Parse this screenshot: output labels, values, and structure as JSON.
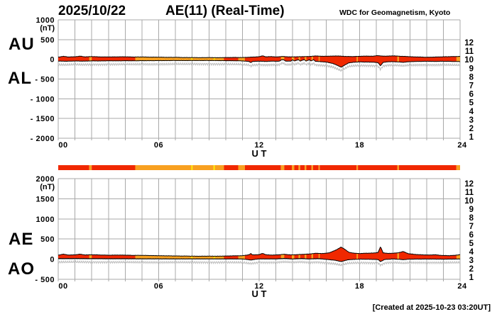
{
  "header": {
    "date": "2025/10/22",
    "title": "AE(11) (Real-Time)",
    "source": "WDC for Geomagnetism, Kyoto"
  },
  "footer": {
    "created": "[Created at 2025-10-23 03:20UT]"
  },
  "colors": {
    "red": "#f02800",
    "orange": "#f8a020",
    "yellow": "#fff400",
    "grid": "#a8a8a8",
    "outline": "#000000",
    "fuzz": "#bdbdbd"
  },
  "station_scale": {
    "numbers": [
      "12",
      "11",
      "10",
      "9",
      "8",
      "7",
      "6",
      "5",
      "4",
      "3",
      "2",
      "1"
    ],
    "colors": [
      "#e8187c",
      "#fa2d10",
      "#ff9000",
      "#f0f000",
      "#86e414",
      "#00d8c8",
      "#1e82f5",
      "#5432cc",
      "#f014f0",
      "#000000",
      "#969696",
      "#c8c8c8"
    ]
  },
  "chart_data": [
    {
      "type": "area",
      "title": "AU and AL auroral electrojet indices, 2025/10/22",
      "xlabel": "U T",
      "ylabel": "(nT)",
      "xlim": [
        0,
        24
      ],
      "ylim": [
        -2000,
        1000
      ],
      "xticks": [
        "00",
        "06",
        "12",
        "18",
        "24"
      ],
      "xtick_hours": [
        0,
        6,
        12,
        18,
        24
      ],
      "yticks": [
        1000,
        500,
        0,
        -500,
        -1000,
        -1500,
        -2000
      ],
      "grid": "1-hour vertical, 500 nT horizontal",
      "legend_position": "right station-count scale 12..1",
      "series": [
        {
          "name": "AU",
          "x": [
            0,
            0.3,
            0.6,
            1,
            1.3,
            1.6,
            2,
            2.5,
            3,
            3.5,
            4,
            4.5,
            5,
            5.5,
            6,
            6.5,
            7,
            7.5,
            8,
            8.5,
            9,
            9.5,
            10,
            10.5,
            11,
            11.5,
            12,
            12.2,
            12.4,
            12.7,
            13,
            13.4,
            13.8,
            14.2,
            14.6,
            15,
            15.4,
            15.8,
            16.2,
            16.6,
            16.9,
            17.2,
            17.6,
            18,
            18.4,
            18.8,
            19.05,
            19.3,
            19.6,
            20,
            20.4,
            20.8,
            21.2,
            21.6,
            22,
            22.4,
            22.8,
            23.2,
            23.6,
            24
          ],
          "values": [
            55,
            75,
            60,
            65,
            80,
            62,
            70,
            62,
            60,
            62,
            65,
            58,
            60,
            55,
            55,
            50,
            50,
            46,
            45,
            42,
            45,
            41,
            45,
            48,
            46,
            55,
            65,
            90,
            62,
            70,
            60,
            72,
            62,
            64,
            68,
            72,
            85,
            76,
            80,
            85,
            80,
            73,
            70,
            76,
            82,
            78,
            95,
            83,
            80,
            88,
            78,
            72,
            62,
            58,
            52,
            56,
            62,
            66,
            70,
            74
          ]
        },
        {
          "name": "AL",
          "x": [
            0,
            0.5,
            1,
            1.5,
            2,
            2.5,
            3,
            3.5,
            4,
            4.5,
            5,
            5.5,
            6,
            6.5,
            7,
            7.5,
            8,
            8.5,
            9,
            9.5,
            10,
            10.5,
            11,
            11.4,
            11.5,
            11.6,
            12,
            12.4,
            12.8,
            13.2,
            13.35,
            13.45,
            13.6,
            13.9,
            14,
            14.1,
            14.35,
            14.45,
            14.7,
            14.8,
            15,
            15.1,
            15.25,
            15.35,
            15.6,
            16,
            16.4,
            16.7,
            16.9,
            17.1,
            17.35,
            17.7,
            18,
            18.4,
            18.8,
            19.1,
            19.25,
            19.4,
            19.7,
            20,
            20.3,
            20.6,
            20.9,
            21.3,
            21.7,
            22.1,
            22.5,
            22.9,
            23.3,
            23.7,
            24
          ],
          "values": [
            -45,
            -50,
            -42,
            -46,
            -40,
            -42,
            -38,
            -40,
            -36,
            -38,
            -34,
            -35,
            -32,
            -33,
            -30,
            -32,
            -30,
            -31,
            -30,
            -32,
            -34,
            -36,
            -40,
            -55,
            -85,
            -55,
            -48,
            -54,
            -47,
            -50,
            -10,
            -10,
            -48,
            -46,
            -8,
            -46,
            -8,
            -45,
            -8,
            -45,
            -10,
            -45,
            -8,
            -50,
            -58,
            -70,
            -105,
            -160,
            -200,
            -150,
            -90,
            -72,
            -66,
            -70,
            -72,
            -85,
            -165,
            -80,
            -62,
            -60,
            -66,
            -76,
            -62,
            -56,
            -52,
            -50,
            -54,
            -50,
            -52,
            -56,
            -58
          ]
        }
      ]
    },
    {
      "type": "area",
      "title": "AE and AO auroral electrojet indices, 2025/10/22",
      "xlabel": "U T",
      "ylabel": "(nT)",
      "xlim": [
        0,
        24
      ],
      "ylim": [
        -500,
        2000
      ],
      "xticks": [
        "00",
        "06",
        "12",
        "18",
        "24"
      ],
      "xtick_hours": [
        0,
        6,
        12,
        18,
        24
      ],
      "yticks": [
        2000,
        1500,
        1000,
        500,
        0,
        -500
      ],
      "grid": "1-hour vertical, 500 nT horizontal",
      "legend_position": "right station-count scale 12..1",
      "series": [
        {
          "name": "AE",
          "x": [
            0,
            0.3,
            0.6,
            1,
            1.3,
            1.6,
            2,
            2.5,
            3,
            3.5,
            4,
            4.5,
            5,
            5.5,
            6,
            6.5,
            7,
            7.5,
            8,
            8.5,
            9,
            9.5,
            10,
            10.5,
            11,
            11.4,
            11.5,
            11.6,
            12,
            12.2,
            12.4,
            12.8,
            13.2,
            13.5,
            13.9,
            14.2,
            14.6,
            15,
            15.4,
            15.8,
            16.2,
            16.6,
            16.9,
            17.1,
            17.35,
            17.7,
            18,
            18.4,
            18.8,
            19.1,
            19.25,
            19.4,
            19.7,
            20,
            20.3,
            20.6,
            20.9,
            21.3,
            21.7,
            22.1,
            22.5,
            22.9,
            23.3,
            23.7,
            24
          ],
          "values": [
            100,
            125,
            103,
            108,
            125,
            105,
            110,
            105,
            98,
            102,
            100,
            95,
            95,
            90,
            87,
            83,
            80,
            78,
            75,
            73,
            75,
            73,
            78,
            84,
            86,
            110,
            140,
            108,
            112,
            145,
            110,
            102,
            110,
            122,
            106,
            112,
            120,
            128,
            147,
            140,
            160,
            230,
            300,
            250,
            172,
            147,
            140,
            148,
            152,
            165,
            310,
            160,
            143,
            148,
            158,
            190,
            138,
            118,
            110,
            103,
            110,
            93,
            88,
            96,
            112
          ]
        },
        {
          "name": "AO",
          "x": [
            0,
            1,
            2,
            3,
            4,
            5,
            6,
            7,
            8,
            9,
            10,
            11,
            11.5,
            12,
            12.5,
            13,
            13.5,
            14,
            14.5,
            15,
            15.5,
            16,
            16.5,
            16.9,
            17.3,
            17.7,
            18,
            18.4,
            18.8,
            19.1,
            19.25,
            19.5,
            20,
            20.3,
            20.6,
            21,
            21.5,
            22,
            22.5,
            23,
            23.5,
            24
          ],
          "values": [
            15,
            18,
            15,
            12,
            12,
            10,
            10,
            8,
            8,
            8,
            6,
            5,
            -20,
            8,
            6,
            6,
            20,
            5,
            18,
            5,
            15,
            -5,
            -25,
            -60,
            -15,
            -5,
            0,
            -2,
            -5,
            -8,
            -60,
            -8,
            5,
            -2,
            -12,
            0,
            2,
            3,
            2,
            0,
            2,
            5
          ]
        }
      ]
    },
    {
      "type": "heatmap",
      "title": "station availability color strip (hours UT)",
      "segments": [
        {
          "start": 0,
          "end": 1.85,
          "color": "red"
        },
        {
          "start": 1.85,
          "end": 2.0,
          "color": "orange"
        },
        {
          "start": 2.0,
          "end": 4.6,
          "color": "red"
        },
        {
          "start": 4.6,
          "end": 7.95,
          "color": "orange"
        },
        {
          "start": 7.95,
          "end": 8.02,
          "color": "yellow"
        },
        {
          "start": 8.02,
          "end": 9.28,
          "color": "orange"
        },
        {
          "start": 9.28,
          "end": 9.35,
          "color": "yellow"
        },
        {
          "start": 9.35,
          "end": 9.9,
          "color": "orange"
        },
        {
          "start": 9.9,
          "end": 10.75,
          "color": "red"
        },
        {
          "start": 10.75,
          "end": 11.15,
          "color": "orange"
        },
        {
          "start": 11.15,
          "end": 13.3,
          "color": "red"
        },
        {
          "start": 13.3,
          "end": 13.5,
          "color": "orange"
        },
        {
          "start": 13.5,
          "end": 13.95,
          "color": "red"
        },
        {
          "start": 13.95,
          "end": 14.1,
          "color": "orange"
        },
        {
          "start": 14.1,
          "end": 14.35,
          "color": "red"
        },
        {
          "start": 14.35,
          "end": 14.45,
          "color": "orange"
        },
        {
          "start": 14.45,
          "end": 14.72,
          "color": "red"
        },
        {
          "start": 14.72,
          "end": 14.82,
          "color": "orange"
        },
        {
          "start": 14.82,
          "end": 15.12,
          "color": "red"
        },
        {
          "start": 15.12,
          "end": 15.22,
          "color": "orange"
        },
        {
          "start": 15.22,
          "end": 15.55,
          "color": "red"
        },
        {
          "start": 15.55,
          "end": 15.62,
          "color": "orange"
        },
        {
          "start": 15.62,
          "end": 17.82,
          "color": "red"
        },
        {
          "start": 17.82,
          "end": 17.9,
          "color": "orange"
        },
        {
          "start": 17.9,
          "end": 20.25,
          "color": "red"
        },
        {
          "start": 20.25,
          "end": 20.35,
          "color": "orange"
        },
        {
          "start": 20.35,
          "end": 23.78,
          "color": "red"
        },
        {
          "start": 23.78,
          "end": 24,
          "color": "orange"
        }
      ]
    }
  ]
}
